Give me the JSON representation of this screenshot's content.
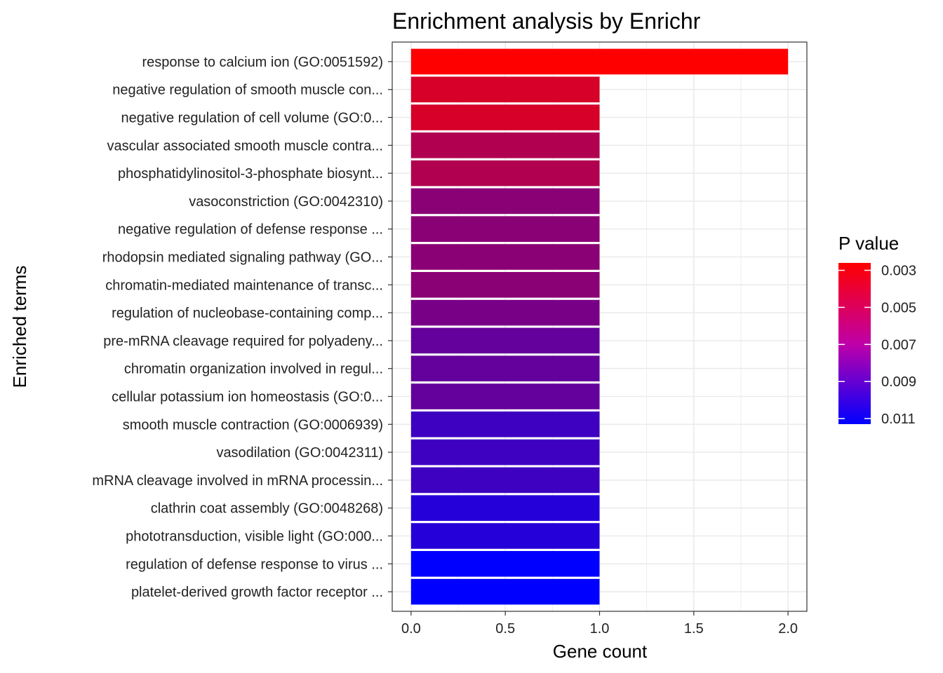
{
  "chart_data": {
    "type": "bar",
    "orientation": "horizontal",
    "title": "Enrichment analysis by Enrichr",
    "xlabel": "Gene count",
    "ylabel": "Enriched terms",
    "xlim": [
      -0.1,
      2.1
    ],
    "xticks": [
      0.0,
      0.5,
      1.0,
      1.5,
      2.0
    ],
    "xtick_labels": [
      "0.0",
      "0.5",
      "1.0",
      "1.5",
      "2.0"
    ],
    "grid": true,
    "categories": [
      "response to calcium ion (GO:0051592)",
      "negative regulation of smooth muscle con...",
      "negative regulation of cell volume (GO:0...",
      "vascular associated smooth muscle contra...",
      "phosphatidylinositol-3-phosphate biosynt...",
      "vasoconstriction (GO:0042310)",
      "negative regulation of defense response ...",
      "rhodopsin mediated signaling pathway (GO...",
      "chromatin-mediated maintenance of transc...",
      "regulation of nucleobase-containing comp...",
      "pre-mRNA cleavage required for polyadeny...",
      "chromatin organization involved in regul...",
      "cellular potassium ion homeostasis (GO:0...",
      "smooth muscle contraction (GO:0006939)",
      "vasodilation (GO:0042311)",
      "mRNA cleavage involved in mRNA processin...",
      "clathrin coat assembly (GO:0048268)",
      "phototransduction, visible light (GO:000...",
      "regulation of defense response to virus ...",
      "platelet-derived growth factor receptor ..."
    ],
    "values": [
      2,
      1,
      1,
      1,
      1,
      1,
      1,
      1,
      1,
      1,
      1,
      1,
      1,
      1,
      1,
      1,
      1,
      1,
      1,
      1
    ],
    "p_values": [
      0.0026,
      0.004,
      0.004,
      0.0053,
      0.0053,
      0.0066,
      0.0066,
      0.0066,
      0.0066,
      0.0072,
      0.0079,
      0.0079,
      0.0079,
      0.0092,
      0.0092,
      0.0092,
      0.01,
      0.01,
      0.0113,
      0.0113
    ],
    "legend": {
      "title": "P value",
      "placement": "right",
      "range": [
        0.0026,
        0.0113
      ],
      "ticks": [
        0.003,
        0.005,
        0.007,
        0.009,
        0.011
      ],
      "tick_labels": [
        "0.003",
        "0.005",
        "0.007",
        "0.009",
        "0.011"
      ],
      "low_color": "#ff0000",
      "high_color": "#0000ff"
    }
  }
}
